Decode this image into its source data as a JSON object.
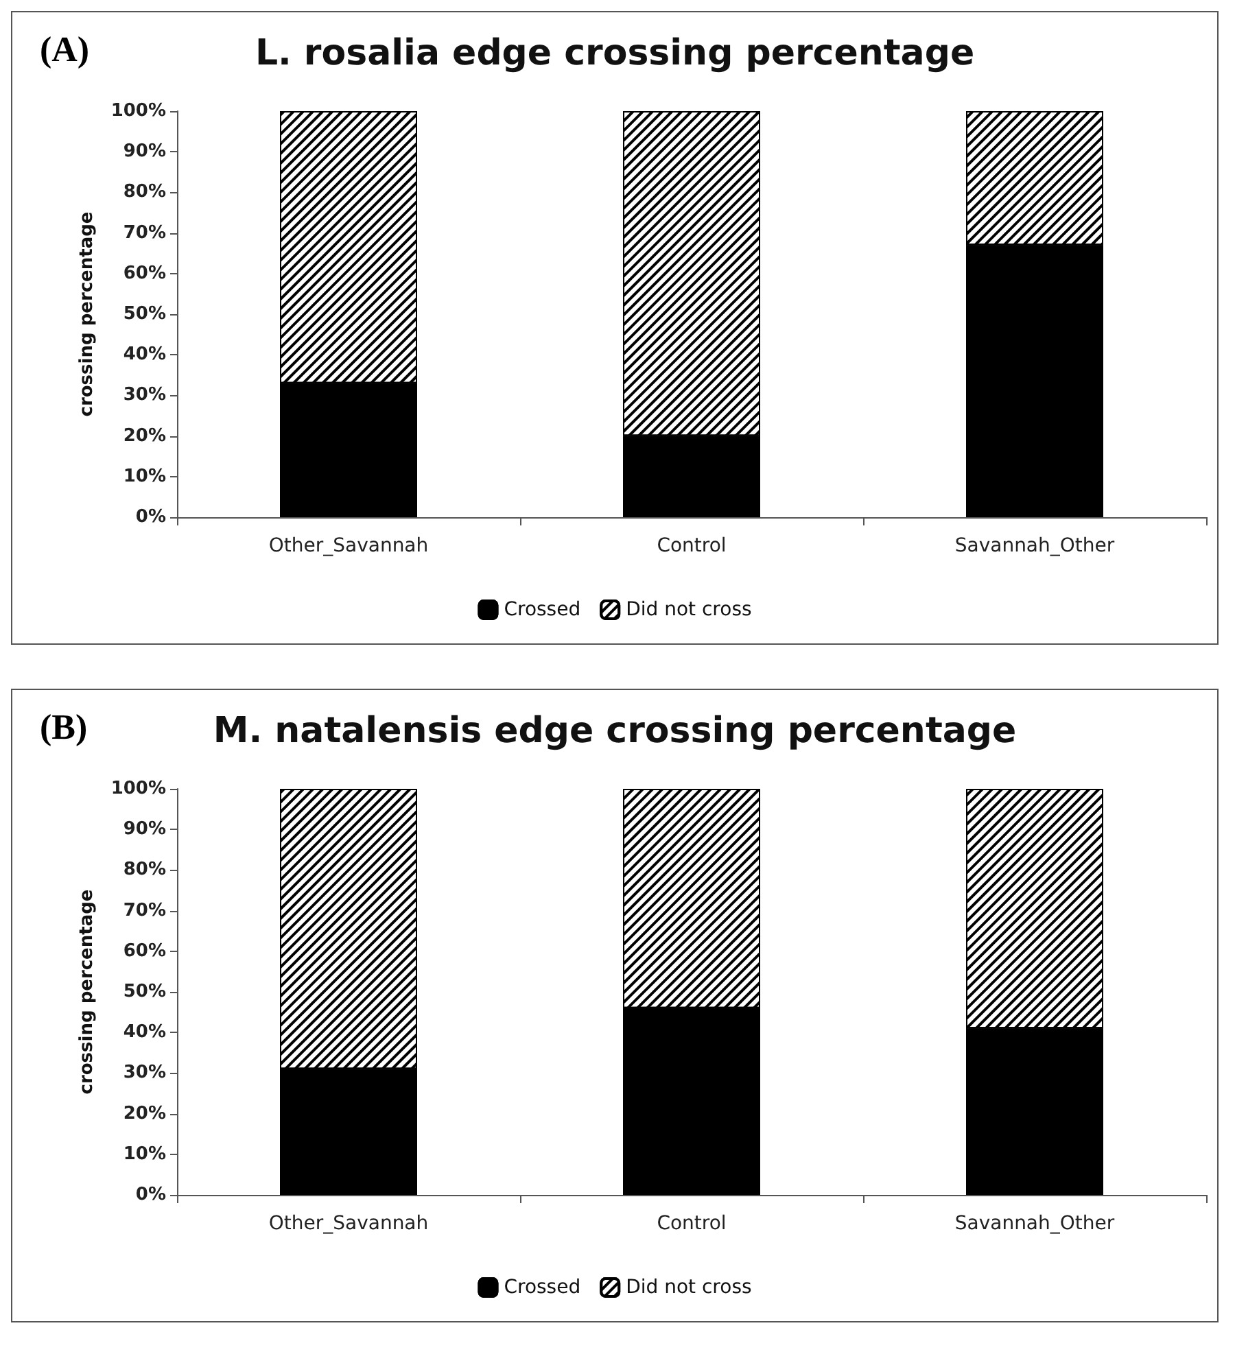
{
  "chart_data": [
    {
      "type": "bar",
      "title": "L. rosalia edge crossing percentage",
      "ylabel": "crossing percentage",
      "annotations": [
        "(A)"
      ],
      "categories": [
        "Other_Savannah",
        "Control",
        "Savannah_Other"
      ],
      "stacked": true,
      "series": [
        {
          "name": "Crossed",
          "color": "#000000",
          "values": [
            33,
            20,
            67
          ]
        },
        {
          "name": "Did not cross",
          "color": "#ffffff",
          "values": [
            67,
            80,
            33
          ]
        }
      ],
      "ylim": [
        0,
        100
      ],
      "yticks": [
        {
          "value": 0,
          "label": "0%"
        },
        {
          "value": 10,
          "label": "10%"
        },
        {
          "value": 20,
          "label": "20%"
        },
        {
          "value": 30,
          "label": "30%"
        },
        {
          "value": 40,
          "label": "40%"
        },
        {
          "value": 50,
          "label": "50%"
        },
        {
          "value": 60,
          "label": "60%"
        },
        {
          "value": 70,
          "label": "70%"
        },
        {
          "value": 80,
          "label": "80%"
        },
        {
          "value": 90,
          "label": "90%"
        },
        {
          "value": 100,
          "label": "100%"
        }
      ],
      "grid": false,
      "legend": "bottom"
    },
    {
      "type": "bar",
      "title": "M. natalensis edge crossing percentage",
      "ylabel": "crossing percentage",
      "annotations": [
        "(B)"
      ],
      "categories": [
        "Other_Savannah",
        "Control",
        "Savannah_Other"
      ],
      "stacked": true,
      "series": [
        {
          "name": "Crossed",
          "color": "#000000",
          "values": [
            31,
            46,
            41
          ]
        },
        {
          "name": "Did not cross",
          "color": "#ffffff",
          "values": [
            69,
            54,
            59
          ]
        }
      ],
      "ylim": [
        0,
        100
      ],
      "yticks": [
        {
          "value": 0,
          "label": "0%"
        },
        {
          "value": 10,
          "label": "10%"
        },
        {
          "value": 20,
          "label": "20%"
        },
        {
          "value": 30,
          "label": "30%"
        },
        {
          "value": 40,
          "label": "40%"
        },
        {
          "value": 50,
          "label": "50%"
        },
        {
          "value": 60,
          "label": "60%"
        },
        {
          "value": 70,
          "label": "70%"
        },
        {
          "value": 80,
          "label": "80%"
        },
        {
          "value": 90,
          "label": "90%"
        },
        {
          "value": 100,
          "label": "100%"
        }
      ],
      "grid": false,
      "legend": "bottom"
    }
  ]
}
